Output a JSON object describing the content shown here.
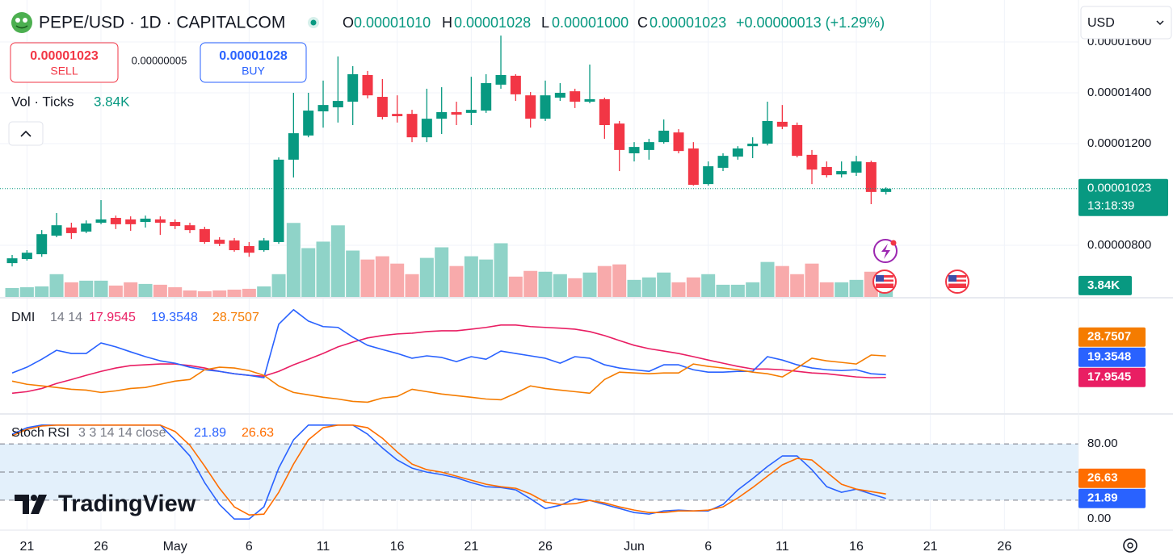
{
  "header": {
    "title": "PEPE/USD · 1D · CAPITALCOM",
    "o_key": "O",
    "o": "0.00001010",
    "h_key": "H",
    "h": "0.00001028",
    "l_key": "L",
    "l": "0.00001000",
    "c_key": "C",
    "c": "0.00001023",
    "change": "+0.00000013 (+1.29%)",
    "currency": "USD"
  },
  "trade": {
    "sell_price": "0.00001023",
    "sell": "SELL",
    "spread": "0.00000005",
    "buy_price": "0.00001028",
    "buy": "BUY"
  },
  "logo": "TradingView",
  "chart_data": [
    {
      "type": "candlestick",
      "up_color": "#089981",
      "down_color": "#f23645",
      "xlim": [
        -0.82,
        72.0
      ],
      "xticks": [
        {
          "value": 1,
          "label": "21"
        },
        {
          "value": 6,
          "label": "26"
        },
        {
          "value": 11,
          "label": "May"
        },
        {
          "value": 16,
          "label": "6"
        },
        {
          "value": 21,
          "label": "11"
        },
        {
          "value": 26,
          "label": "16"
        },
        {
          "value": 31,
          "label": "21"
        },
        {
          "value": 36,
          "label": "26"
        },
        {
          "value": 42,
          "label": "Jun"
        },
        {
          "value": 47,
          "label": "6"
        },
        {
          "value": 52,
          "label": "11"
        },
        {
          "value": 57,
          "label": "16"
        },
        {
          "value": 62,
          "label": "21"
        },
        {
          "value": 67,
          "label": "26"
        }
      ],
      "ylim": [
        5.97e-06,
        1.765e-05
      ],
      "yticks": [
        {
          "value": 1.6e-05,
          "label": "0.00001600"
        },
        {
          "value": 1.4e-05,
          "label": "0.00001400"
        },
        {
          "value": 1.2e-05,
          "label": "0.00001200"
        },
        {
          "value": 8e-06,
          "label": "0.00000800"
        }
      ],
      "grid": true,
      "price_label": "0.00001023",
      "countdown": "13:18:39",
      "open": [
        7.3e-06,
        7.46e-06,
        7.65e-06,
        8.38e-06,
        8.7e-06,
        8.54e-06,
        8.89e-06,
        9.08e-06,
        9.02e-06,
        8.92e-06,
        9.02e-06,
        8.92e-06,
        8.79e-06,
        8.64e-06,
        8.22e-06,
        8.19e-06,
        7.97e-06,
        7.81e-06,
        8.13e-06,
        1.137e-05,
        1.232e-05,
        1.327e-05,
        1.343e-05,
        1.365e-05,
        1.47e-05,
        1.384e-05,
        1.317e-05,
        1.317e-05,
        1.225e-05,
        1.298e-05,
        1.324e-05,
        1.321e-05,
        1.33e-05,
        1.432e-05,
        1.467e-05,
        1.39e-05,
        1.298e-05,
        1.381e-05,
        1.406e-05,
        1.365e-05,
        1.375e-05,
        1.279e-05,
        1.162e-05,
        1.175e-05,
        1.206e-05,
        1.244e-05,
        1.181e-05,
        1.041e-05,
        1.105e-05,
        1.149e-05,
        1.19e-05,
        1.2e-05,
        1.286e-05,
        1.273e-05,
        1.156e-05,
        1.108e-05,
        1.079e-05,
        1.086e-05,
        1.127e-05,
        1.01e-05
      ],
      "high": [
        7.62e-06,
        7.81e-06,
        8.6e-06,
        9.27e-06,
        8.89e-06,
        8.98e-06,
        9.78e-06,
        9.17e-06,
        9.14e-06,
        9.17e-06,
        9.14e-06,
        9.02e-06,
        8.89e-06,
        8.73e-06,
        8.32e-06,
        8.29e-06,
        8.13e-06,
        8.29e-06,
        1.146e-05,
        1.4e-05,
        1.4e-05,
        1.448e-05,
        1.543e-05,
        1.505e-05,
        1.486e-05,
        1.454e-05,
        1.39e-05,
        1.333e-05,
        1.416e-05,
        1.422e-05,
        1.365e-05,
        1.463e-05,
        1.473e-05,
        1.625e-05,
        1.473e-05,
        1.403e-05,
        1.448e-05,
        1.438e-05,
        1.416e-05,
        1.511e-05,
        1.381e-05,
        1.289e-05,
        1.206e-05,
        1.219e-05,
        1.295e-05,
        1.257e-05,
        1.206e-05,
        1.13e-05,
        1.162e-05,
        1.19e-05,
        1.225e-05,
        1.365e-05,
        1.352e-05,
        1.283e-05,
        1.175e-05,
        1.13e-05,
        1.13e-05,
        1.152e-05,
        1.133e-05,
        1.028e-05
      ],
      "low": [
        7.17e-06,
        7.4e-06,
        7.55e-06,
        8.32e-06,
        8.25e-06,
        8.48e-06,
        8.83e-06,
        8.64e-06,
        8.57e-06,
        8.7e-06,
        8.41e-06,
        8.64e-06,
        8.48e-06,
        8.06e-06,
        7.97e-06,
        7.75e-06,
        7.55e-06,
        7.75e-06,
        8.06e-06,
        1.067e-05,
        1.225e-05,
        1.263e-05,
        1.283e-05,
        1.273e-05,
        1.378e-05,
        1.295e-05,
        1.283e-05,
        1.206e-05,
        1.206e-05,
        1.238e-05,
        1.273e-05,
        1.273e-05,
        1.321e-05,
        1.416e-05,
        1.368e-05,
        1.263e-05,
        1.289e-05,
        1.368e-05,
        1.34e-05,
        1.359e-05,
        1.219e-05,
        1.092e-05,
        1.13e-05,
        1.137e-05,
        1.2e-05,
        1.162e-05,
        1.035e-05,
        1.035e-05,
        1.092e-05,
        1.137e-05,
        1.143e-05,
        1.193e-05,
        1.257e-05,
        1.146e-05,
        1.041e-05,
        1.067e-05,
        1.067e-05,
        1.073e-05,
        9.62e-06,
        1e-05
      ],
      "close": [
        7.49e-06,
        7.71e-06,
        8.44e-06,
        8.79e-06,
        8.48e-06,
        8.86e-06,
        9.02e-06,
        8.83e-06,
        8.83e-06,
        9.05e-06,
        8.89e-06,
        8.76e-06,
        8.6e-06,
        8.13e-06,
        8.06e-06,
        7.81e-06,
        7.71e-06,
        8.19e-06,
        1.137e-05,
        1.241e-05,
        1.33e-05,
        1.352e-05,
        1.368e-05,
        1.473e-05,
        1.39e-05,
        1.305e-05,
        1.308e-05,
        1.225e-05,
        1.298e-05,
        1.324e-05,
        1.314e-05,
        1.333e-05,
        1.438e-05,
        1.47e-05,
        1.394e-05,
        1.298e-05,
        1.39e-05,
        1.4e-05,
        1.365e-05,
        1.375e-05,
        1.273e-05,
        1.175e-05,
        1.187e-05,
        1.206e-05,
        1.251e-05,
        1.171e-05,
        1.038e-05,
        1.111e-05,
        1.152e-05,
        1.181e-05,
        1.2e-05,
        1.289e-05,
        1.267e-05,
        1.152e-05,
        1.098e-05,
        1.076e-05,
        1.092e-05,
        1.13e-05,
        1.01e-05,
        1.023e-05
      ],
      "volume": {
        "title": "Vol · Ticks",
        "last_label": "3.84K",
        "ylim": [
          0,
          100000
        ],
        "up_color": "#8fd3c8",
        "down_color": "#f8aaab",
        "values": [
          3010,
          3290,
          3560,
          7670,
          4930,
          5480,
          5480,
          3840,
          4930,
          4380,
          4110,
          3290,
          2190,
          1920,
          2190,
          2470,
          2740,
          3560,
          7670,
          24930,
          16440,
          18630,
          24110,
          15620,
          12600,
          13700,
          11230,
          7670,
          13150,
          16710,
          10410,
          13700,
          12600,
          18080,
          6850,
          8770,
          8490,
          7670,
          6300,
          8220,
          10410,
          10960,
          5750,
          6580,
          8220,
          4930,
          6580,
          7670,
          4110,
          4110,
          4930,
          11780,
          10410,
          7670,
          11230,
          4930,
          4930,
          5750,
          8490,
          3840
        ]
      }
    },
    {
      "type": "line",
      "title": "DMI",
      "params": "14 14",
      "ylim": [
        0,
        57.6
      ],
      "series": [
        {
          "color": "#e91e63",
          "values": [
            10.0,
            10.8,
            12.4,
            14.9,
            16.9,
            19.0,
            21.0,
            22.7,
            23.9,
            24.3,
            24.7,
            24.7,
            23.9,
            22.7,
            21.0,
            19.8,
            19.0,
            18.6,
            21.0,
            24.3,
            27.1,
            30.0,
            33.3,
            35.7,
            37.8,
            39.0,
            39.8,
            40.2,
            41.0,
            41.4,
            41.4,
            42.2,
            43.1,
            44.3,
            44.3,
            43.5,
            43.1,
            42.7,
            42.2,
            41.0,
            39.0,
            36.5,
            34.1,
            32.4,
            31.2,
            30.0,
            28.4,
            26.7,
            25.1,
            23.5,
            22.2,
            22.2,
            21.8,
            21.0,
            20.2,
            19.8,
            19.0,
            18.2,
            17.8,
            17.9545
          ]
        },
        {
          "color": "#2962ff",
          "values": [
            20.2,
            23.1,
            27.1,
            31.6,
            30.0,
            30.0,
            35.3,
            33.3,
            30.8,
            28.4,
            26.3,
            25.1,
            23.1,
            21.8,
            21.0,
            19.8,
            19.0,
            17.8,
            44.7,
            52.0,
            46.3,
            43.5,
            43.1,
            38.2,
            34.1,
            32.0,
            30.0,
            27.6,
            28.8,
            28.0,
            25.9,
            28.4,
            27.1,
            31.2,
            30.0,
            28.8,
            27.6,
            25.1,
            28.4,
            27.6,
            24.3,
            22.7,
            21.8,
            21.0,
            24.3,
            24.3,
            21.8,
            20.6,
            20.6,
            21.0,
            21.0,
            28.4,
            26.7,
            24.3,
            22.7,
            21.8,
            21.4,
            21.8,
            19.8,
            19.3548
          ]
        },
        {
          "color": "#f57c00",
          "values": [
            16.1,
            14.5,
            13.7,
            12.9,
            12.0,
            11.6,
            10.4,
            11.2,
            12.4,
            12.9,
            14.5,
            16.1,
            16.9,
            21.8,
            23.1,
            22.7,
            21.4,
            19.0,
            13.7,
            10.4,
            9.2,
            8.0,
            7.1,
            5.9,
            5.5,
            7.6,
            8.4,
            12.0,
            10.8,
            9.6,
            8.8,
            8.0,
            7.1,
            6.7,
            10.0,
            13.7,
            12.4,
            11.6,
            10.8,
            10.0,
            16.9,
            20.6,
            20.2,
            19.8,
            20.2,
            20.2,
            24.7,
            23.5,
            22.7,
            21.8,
            20.6,
            19.8,
            18.2,
            22.7,
            27.6,
            26.3,
            25.5,
            24.7,
            29.2,
            28.7507
          ]
        }
      ]
    },
    {
      "type": "line",
      "title": "Stoch RSI",
      "params": "3 3 14 14 close",
      "ylim": [
        -11,
        111
      ],
      "yticks": [
        {
          "value": 80,
          "label": "80.00"
        },
        {
          "value": 0,
          "label": "0.00"
        }
      ],
      "levels": [
        80,
        50,
        20
      ],
      "band": [
        20,
        80
      ],
      "band_color": "#e3f0fb",
      "series": [
        {
          "color": "#2962ff",
          "values": [
            90.3,
            97.2,
            100,
            100,
            100,
            100,
            100,
            100,
            100,
            100,
            100,
            84.3,
            67.1,
            38.7,
            15.5,
            0,
            0,
            12.9,
            54.2,
            84.3,
            100,
            100,
            100,
            100,
            90.3,
            75.7,
            62.8,
            54.2,
            49.9,
            47.3,
            43.9,
            38.7,
            34.4,
            33.5,
            31.0,
            21.5,
            11.2,
            14.6,
            21.5,
            19.8,
            15.5,
            11.2,
            6.9,
            5.2,
            8.6,
            9.5,
            8.6,
            8.6,
            15.5,
            31.0,
            43.0,
            55.9,
            67.1,
            67.1,
            52.5,
            34.4,
            28.4,
            31.8,
            26.7,
            21.89
          ]
        },
        {
          "color": "#ff6d00",
          "values": [
            88.6,
            95.5,
            99.0,
            100,
            100,
            100,
            100,
            100,
            100,
            100,
            100,
            93.2,
            78.5,
            56.3,
            32.7,
            12.9,
            4.3,
            5.2,
            28.4,
            58.5,
            84.3,
            97.2,
            100,
            100,
            97.2,
            86.0,
            71.4,
            58.5,
            52.5,
            49.9,
            45.6,
            41.3,
            37.0,
            34.4,
            32.7,
            26.7,
            18.1,
            15.5,
            16.3,
            19.8,
            17.2,
            12.9,
            9.5,
            6.9,
            6.9,
            8.6,
            8.6,
            9.5,
            12.9,
            22.4,
            33.5,
            45.6,
            57.6,
            64.5,
            62.8,
            49.9,
            37.0,
            31.8,
            29.2,
            26.63
          ]
        }
      ]
    }
  ]
}
